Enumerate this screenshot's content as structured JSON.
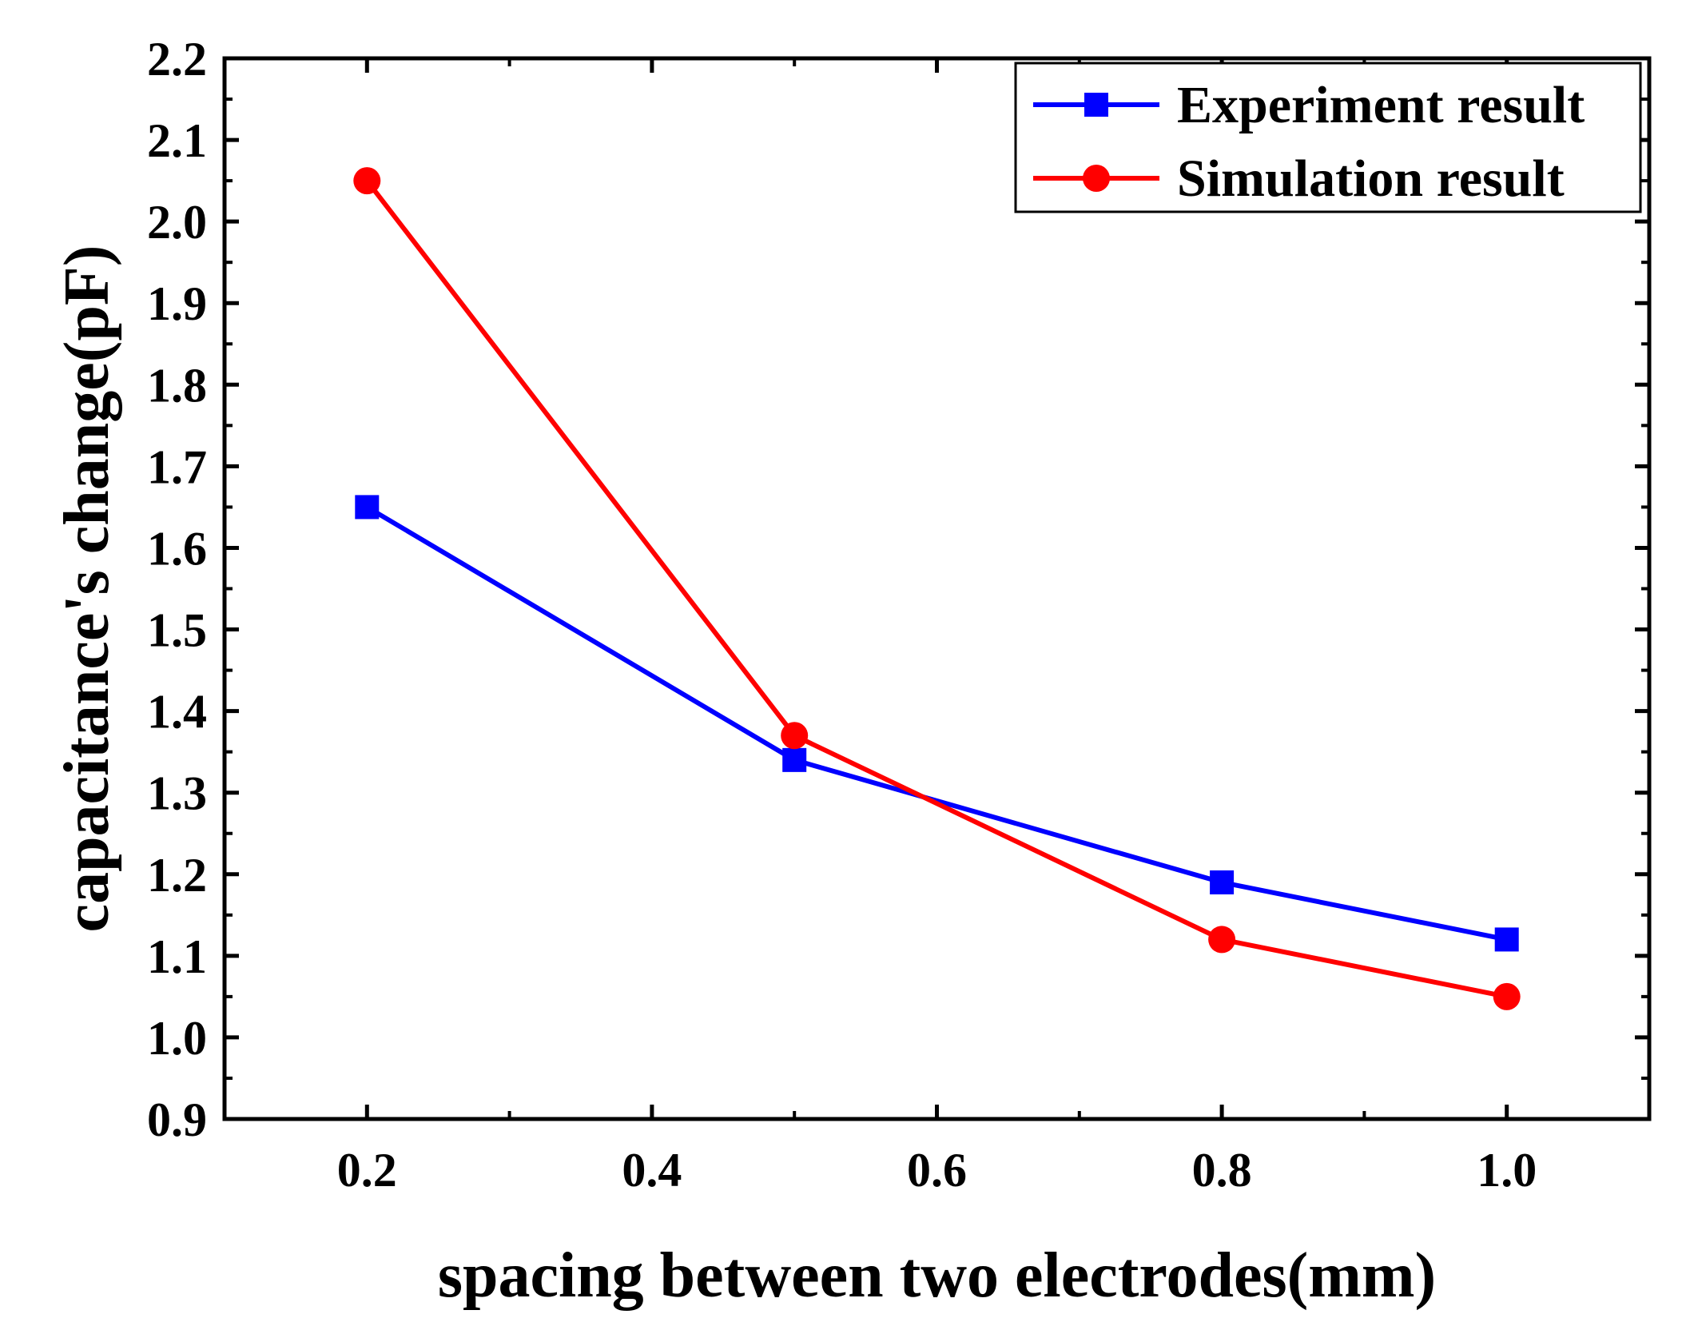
{
  "chart_data": {
    "type": "line",
    "title": "",
    "xlabel": "spacing between two electrodes(mm)",
    "ylabel": "capacitance's change(pF)",
    "xlim": [
      0.1,
      1.1
    ],
    "ylim": [
      0.9,
      2.2
    ],
    "x_ticks": [
      0.2,
      0.4,
      0.6,
      0.8,
      1.0
    ],
    "x_tick_labels": [
      "0.2",
      "0.4",
      "0.6",
      "0.8",
      "1.0"
    ],
    "x_minor_ticks": [
      0.1,
      0.3,
      0.5,
      0.7,
      0.9,
      1.1
    ],
    "y_ticks": [
      0.9,
      1.0,
      1.1,
      1.2,
      1.3,
      1.4,
      1.5,
      1.6,
      1.7,
      1.8,
      1.9,
      2.0,
      2.1,
      2.2
    ],
    "y_tick_labels": [
      "0.9",
      "1.0",
      "1.1",
      "1.2",
      "1.3",
      "1.4",
      "1.5",
      "1.6",
      "1.7",
      "1.8",
      "1.9",
      "2.0",
      "2.1",
      "2.2"
    ],
    "grid": false,
    "legend_position": "top-right",
    "series": [
      {
        "name": "Experiment result",
        "marker": "square",
        "color": "#0000ff",
        "x": [
          0.2,
          0.5,
          0.8,
          1.0
        ],
        "values": [
          1.65,
          1.34,
          1.19,
          1.12
        ]
      },
      {
        "name": "Simulation result",
        "marker": "circle",
        "color": "#ff0000",
        "x": [
          0.2,
          0.5,
          0.8,
          1.0
        ],
        "values": [
          2.05,
          1.37,
          1.12,
          1.05
        ]
      }
    ]
  }
}
